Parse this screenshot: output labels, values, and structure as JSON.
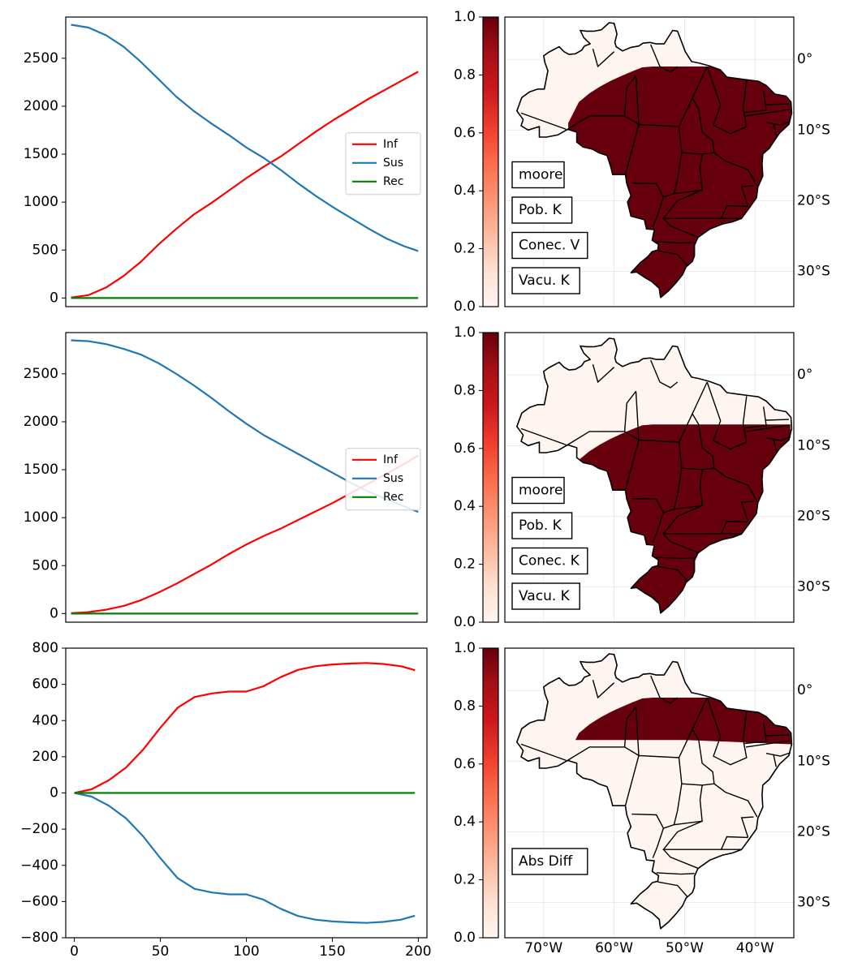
{
  "chart_data": [
    {
      "type": "line",
      "panel": "row-1-lines",
      "xlim": [
        -3,
        203
      ],
      "ylim": [
        -90,
        2930
      ],
      "yticks": [
        0,
        500,
        1000,
        1500,
        2000,
        2500
      ],
      "show_xticks": false,
      "legend": "center-right",
      "series": [
        {
          "name": "Inf",
          "color": "#ff0000",
          "x": [
            0,
            10,
            20,
            30,
            40,
            50,
            60,
            70,
            80,
            90,
            100,
            110,
            120,
            130,
            140,
            150,
            160,
            170,
            180,
            190,
            198
          ],
          "y": [
            5,
            30,
            110,
            230,
            380,
            560,
            720,
            870,
            990,
            1120,
            1250,
            1370,
            1480,
            1610,
            1740,
            1860,
            1970,
            2080,
            2180,
            2280,
            2360
          ]
        },
        {
          "name": "Sus",
          "color": "#1f77b4",
          "x": [
            0,
            10,
            20,
            30,
            40,
            50,
            60,
            70,
            80,
            90,
            100,
            110,
            120,
            130,
            140,
            150,
            160,
            170,
            180,
            190,
            198
          ],
          "y": [
            2850,
            2820,
            2740,
            2620,
            2460,
            2280,
            2100,
            1950,
            1820,
            1700,
            1570,
            1460,
            1330,
            1190,
            1060,
            940,
            830,
            720,
            620,
            540,
            490
          ]
        },
        {
          "name": "Rec",
          "color": "#008000",
          "x": [
            0,
            198
          ],
          "y": [
            0,
            0
          ]
        }
      ]
    },
    {
      "type": "line",
      "panel": "row-2-lines",
      "xlim": [
        -3,
        203
      ],
      "ylim": [
        -90,
        2930
      ],
      "yticks": [
        0,
        500,
        1000,
        1500,
        2000,
        2500
      ],
      "show_xticks": false,
      "legend": "center-right",
      "series": [
        {
          "name": "Inf",
          "color": "#ff0000",
          "x": [
            0,
            10,
            20,
            30,
            40,
            50,
            60,
            70,
            80,
            90,
            100,
            110,
            120,
            130,
            140,
            150,
            160,
            170,
            180,
            190,
            198
          ],
          "y": [
            5,
            15,
            40,
            80,
            140,
            220,
            310,
            410,
            510,
            620,
            720,
            810,
            890,
            980,
            1070,
            1160,
            1260,
            1360,
            1460,
            1560,
            1650
          ]
        },
        {
          "name": "Sus",
          "color": "#1f77b4",
          "x": [
            0,
            10,
            20,
            30,
            40,
            50,
            60,
            70,
            80,
            90,
            100,
            110,
            120,
            130,
            140,
            150,
            160,
            170,
            180,
            190,
            198
          ],
          "y": [
            2850,
            2840,
            2810,
            2760,
            2700,
            2610,
            2500,
            2380,
            2250,
            2110,
            1980,
            1860,
            1760,
            1660,
            1560,
            1460,
            1360,
            1270,
            1190,
            1120,
            1060
          ]
        },
        {
          "name": "Rec",
          "color": "#008000",
          "x": [
            0,
            198
          ],
          "y": [
            0,
            0
          ]
        }
      ]
    },
    {
      "type": "line",
      "panel": "row-3-lines",
      "xlim": [
        -5,
        205
      ],
      "ylim": [
        -800,
        800
      ],
      "yticks": [
        -800,
        -600,
        -400,
        -200,
        0,
        200,
        400,
        600,
        800
      ],
      "xticks": [
        0,
        50,
        100,
        150,
        200
      ],
      "show_xticks": true,
      "series": [
        {
          "name": "Inf",
          "color": "#ff0000",
          "x": [
            0,
            10,
            20,
            30,
            40,
            50,
            60,
            70,
            80,
            90,
            100,
            110,
            120,
            130,
            140,
            150,
            160,
            170,
            180,
            190,
            198
          ],
          "y": [
            0,
            20,
            70,
            140,
            240,
            360,
            470,
            530,
            550,
            560,
            560,
            590,
            640,
            680,
            700,
            710,
            715,
            718,
            712,
            700,
            678
          ]
        },
        {
          "name": "Sus",
          "color": "#1f77b4",
          "x": [
            0,
            10,
            20,
            30,
            40,
            50,
            60,
            70,
            80,
            90,
            100,
            110,
            120,
            130,
            140,
            150,
            160,
            170,
            180,
            190,
            198
          ],
          "y": [
            0,
            -20,
            -70,
            -140,
            -240,
            -360,
            -470,
            -530,
            -550,
            -560,
            -560,
            -590,
            -640,
            -680,
            -700,
            -710,
            -715,
            -718,
            -712,
            -700,
            -678
          ]
        },
        {
          "name": "Rec",
          "color": "#008000",
          "x": [
            0,
            198
          ],
          "y": [
            0,
            0
          ]
        }
      ]
    },
    {
      "type": "heatmap",
      "panel": "row-1-map",
      "colormap": "Reds",
      "colorbar_range": [
        0.0,
        1.0
      ],
      "colorbar_ticks": [
        "0.0",
        "0.2",
        "0.4",
        "0.6",
        "0.8",
        "1.0"
      ],
      "lat_ticks": [
        "0°",
        "10°S",
        "20°S",
        "30°S"
      ],
      "lat_values": [
        0,
        -10,
        -20,
        -30
      ],
      "annotations": [
        "moore",
        "Pob. K",
        "Conec. V",
        "Vacu. K"
      ],
      "band_north_lat": -1,
      "band_south_lat": null
    },
    {
      "type": "heatmap",
      "panel": "row-2-map",
      "colormap": "Reds",
      "colorbar_range": [
        0.0,
        1.0
      ],
      "colorbar_ticks": [
        "0.0",
        "0.2",
        "0.4",
        "0.6",
        "0.8",
        "1.0"
      ],
      "lat_ticks": [
        "0°",
        "10°S",
        "20°S",
        "30°S"
      ],
      "lat_values": [
        0,
        -10,
        -20,
        -30
      ],
      "annotations": [
        "moore",
        "Pob. K",
        "Conec. K",
        "Vacu. K"
      ],
      "band_north_lat": -7,
      "band_south_lat": null
    },
    {
      "type": "heatmap",
      "panel": "row-3-map",
      "colormap": "Reds",
      "colorbar_range": [
        0.0,
        1.0
      ],
      "colorbar_ticks": [
        "0.0",
        "0.2",
        "0.4",
        "0.6",
        "0.8",
        "1.0"
      ],
      "lat_ticks": [
        "0°",
        "10°S",
        "20°S",
        "30°S"
      ],
      "lat_values": [
        0,
        -10,
        -20,
        -30
      ],
      "lon_ticks": [
        "70°W",
        "60°W",
        "50°W",
        "40°W"
      ],
      "lon_values": [
        -70,
        -60,
        -50,
        -40
      ],
      "annotations": [
        "Abs Diff"
      ],
      "band_north_lat": -1,
      "band_south_lat": -7
    }
  ]
}
